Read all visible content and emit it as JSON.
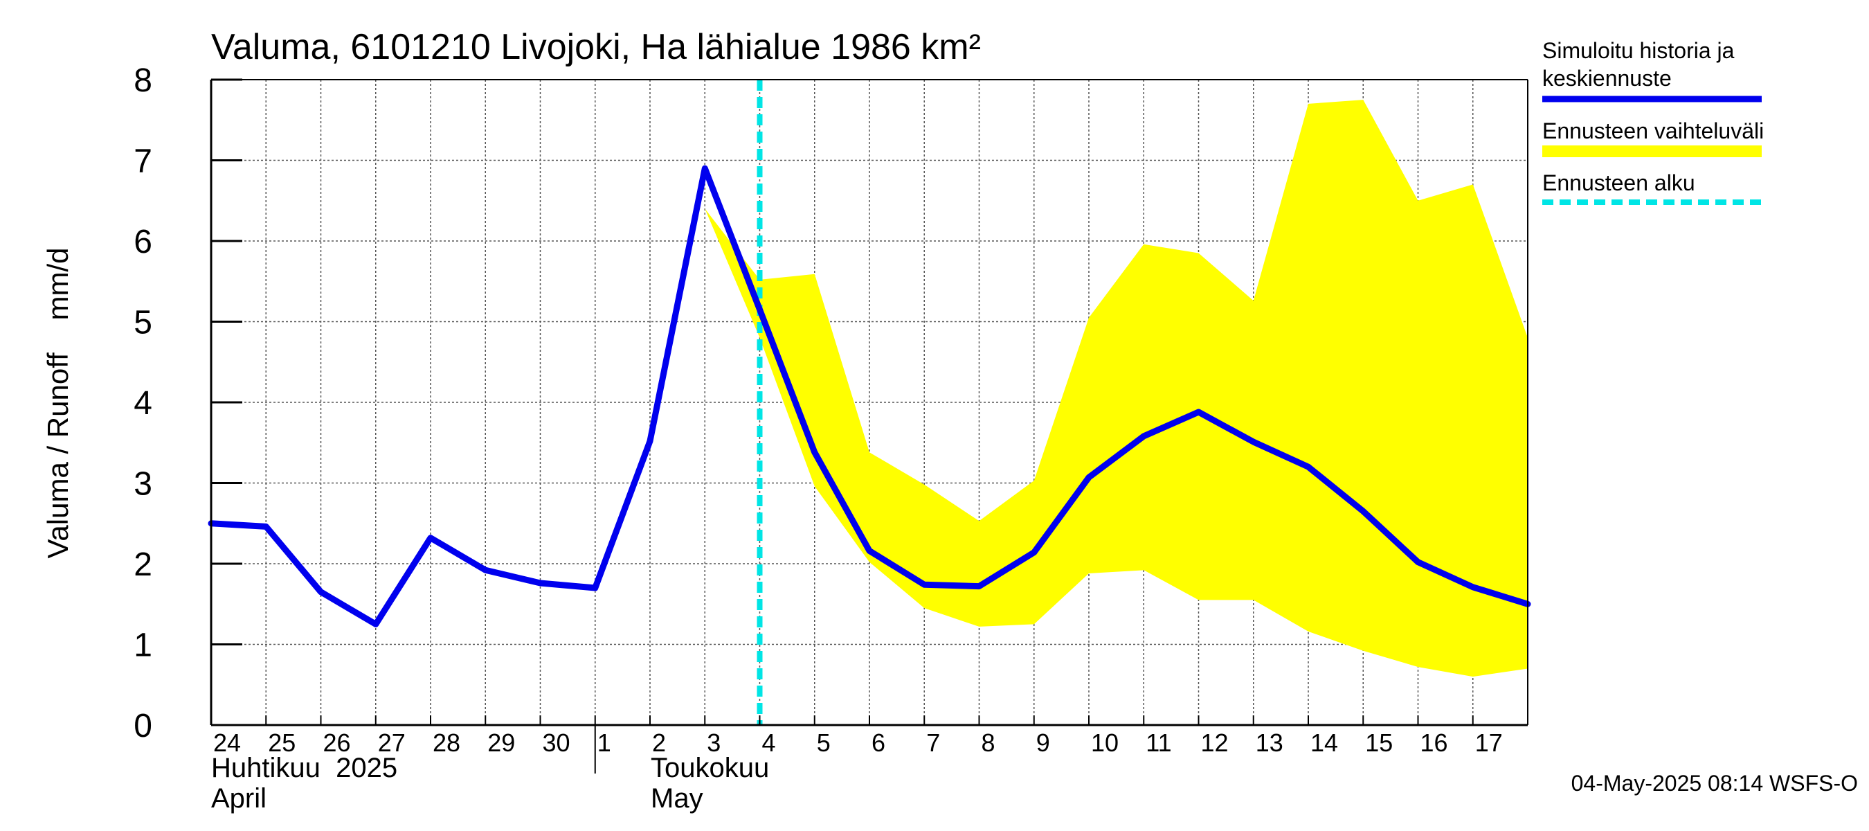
{
  "chart_data": {
    "type": "line",
    "title": "Valuma, 6101210 Livojoki, Ha lähialue 1986 km²",
    "ylabel": "Valuma / Runoff    mm/d",
    "ylim": [
      0,
      8
    ],
    "yticks": [
      "0",
      "1",
      "2",
      "3",
      "4",
      "5",
      "6",
      "7",
      "8"
    ],
    "x_tick_labels": [
      "24",
      "25",
      "26",
      "27",
      "28",
      "29",
      "30",
      "1",
      "2",
      "3",
      "4",
      "5",
      "6",
      "7",
      "8",
      "9",
      "10",
      "11",
      "12",
      "13",
      "14",
      "15",
      "16",
      "17"
    ],
    "month_labels": [
      {
        "line1": "Huhtikuu  2025",
        "line2": "April"
      },
      {
        "line1": "Toukokuu",
        "line2": "May"
      }
    ],
    "forecast_start_day": 10,
    "series": [
      {
        "name": "Simuloitu historia ja keskiennuste",
        "color": "#0000ee",
        "x": [
          0,
          1,
          2,
          3,
          4,
          5,
          6,
          7,
          8,
          9,
          10,
          11,
          12,
          13,
          14,
          15,
          16,
          17,
          18,
          19,
          20,
          21,
          22,
          23,
          24
        ],
        "values": [
          2.5,
          2.46,
          1.65,
          1.25,
          2.32,
          1.92,
          1.76,
          1.7,
          3.52,
          6.9,
          5.15,
          3.38,
          2.16,
          1.74,
          1.72,
          2.14,
          3.07,
          3.58,
          3.88,
          3.51,
          3.2,
          2.65,
          2.02,
          1.71,
          1.5
        ]
      },
      {
        "name": "Ennusteen vaihteluväli",
        "color": "#ffff00",
        "type": "band",
        "x": [
          9,
          10,
          11,
          12,
          13,
          14,
          15,
          16,
          17,
          18,
          19,
          20,
          21,
          22,
          23,
          24
        ],
        "upper": [
          6.4,
          5.52,
          5.59,
          3.38,
          2.98,
          2.53,
          3.03,
          5.05,
          5.96,
          5.85,
          5.26,
          7.7,
          7.75,
          6.5,
          6.7,
          4.8
        ],
        "lower": [
          6.4,
          4.8,
          2.96,
          2.02,
          1.45,
          1.22,
          1.25,
          1.88,
          1.92,
          1.55,
          1.55,
          1.16,
          0.92,
          0.72,
          0.6,
          0.7
        ]
      }
    ],
    "legend": [
      {
        "label_line1": "Simuloitu historia ja",
        "label_line2": "keskiennuste",
        "color": "#0000ee",
        "style": "solid"
      },
      {
        "label_line1": "Ennusteen vaihteluväli",
        "label_line2": "",
        "color": "#ffff00",
        "style": "band"
      },
      {
        "label_line1": "Ennusteen alku",
        "label_line2": "",
        "color": "#00e5e5",
        "style": "dashed"
      }
    ],
    "legend_position": "right",
    "grid": true
  },
  "footer": {
    "timestamp": "04-May-2025 08:14 WSFS-O"
  }
}
